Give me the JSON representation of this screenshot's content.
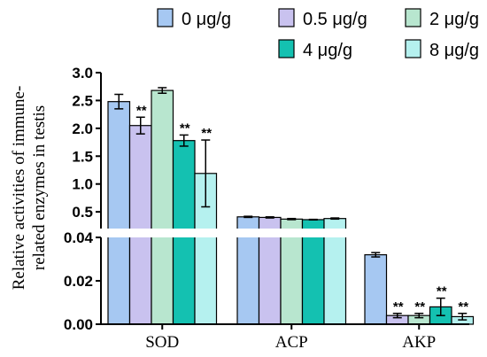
{
  "chart_data": {
    "type": "bar",
    "ylabel_lines": [
      "Relative activities of immune-",
      "related enzymes in testis"
    ],
    "categories": [
      "SOD",
      "ACP",
      "AKP"
    ],
    "series": [
      {
        "name": "0 μg/g",
        "color": "#a6c8f2",
        "values": [
          2.48,
          0.41,
          0.032
        ],
        "errors": [
          0.13,
          0.01,
          0.001
        ],
        "sig": [
          "",
          "",
          ""
        ]
      },
      {
        "name": "0.5 μg/g",
        "color": "#c9c2ef",
        "values": [
          2.05,
          0.4,
          0.004
        ],
        "errors": [
          0.15,
          0.01,
          0.001
        ],
        "sig": [
          "**",
          "",
          "**"
        ]
      },
      {
        "name": "2 μg/g",
        "color": "#b8e6cf",
        "values": [
          2.68,
          0.37,
          0.004
        ],
        "errors": [
          0.05,
          0.01,
          0.001
        ],
        "sig": [
          "",
          "",
          "**"
        ]
      },
      {
        "name": "4 μg/g",
        "color": "#14c1b1",
        "values": [
          1.78,
          0.36,
          0.008
        ],
        "errors": [
          0.1,
          0.005,
          0.004
        ],
        "sig": [
          "**",
          "",
          "**"
        ]
      },
      {
        "name": "8 μg/g",
        "color": "#b5f1ef",
        "values": [
          1.19,
          0.38,
          0.0035
        ],
        "errors": [
          0.6,
          0.01,
          0.0015
        ],
        "sig": [
          "**",
          "",
          "**"
        ]
      }
    ],
    "y_upper_ticks": [
      "0.5",
      "1.0",
      "1.5",
      "2.0",
      "2.5",
      "3.0"
    ],
    "y_lower_ticks": [
      "0.00",
      "0.02",
      "0.04"
    ],
    "y_break": {
      "lower_range": [
        0,
        0.04
      ],
      "upper_range": [
        0.2,
        3.0
      ]
    },
    "legend_position": "top"
  },
  "colors": {
    "axis": "#000000",
    "bar_stroke": "#000000"
  }
}
